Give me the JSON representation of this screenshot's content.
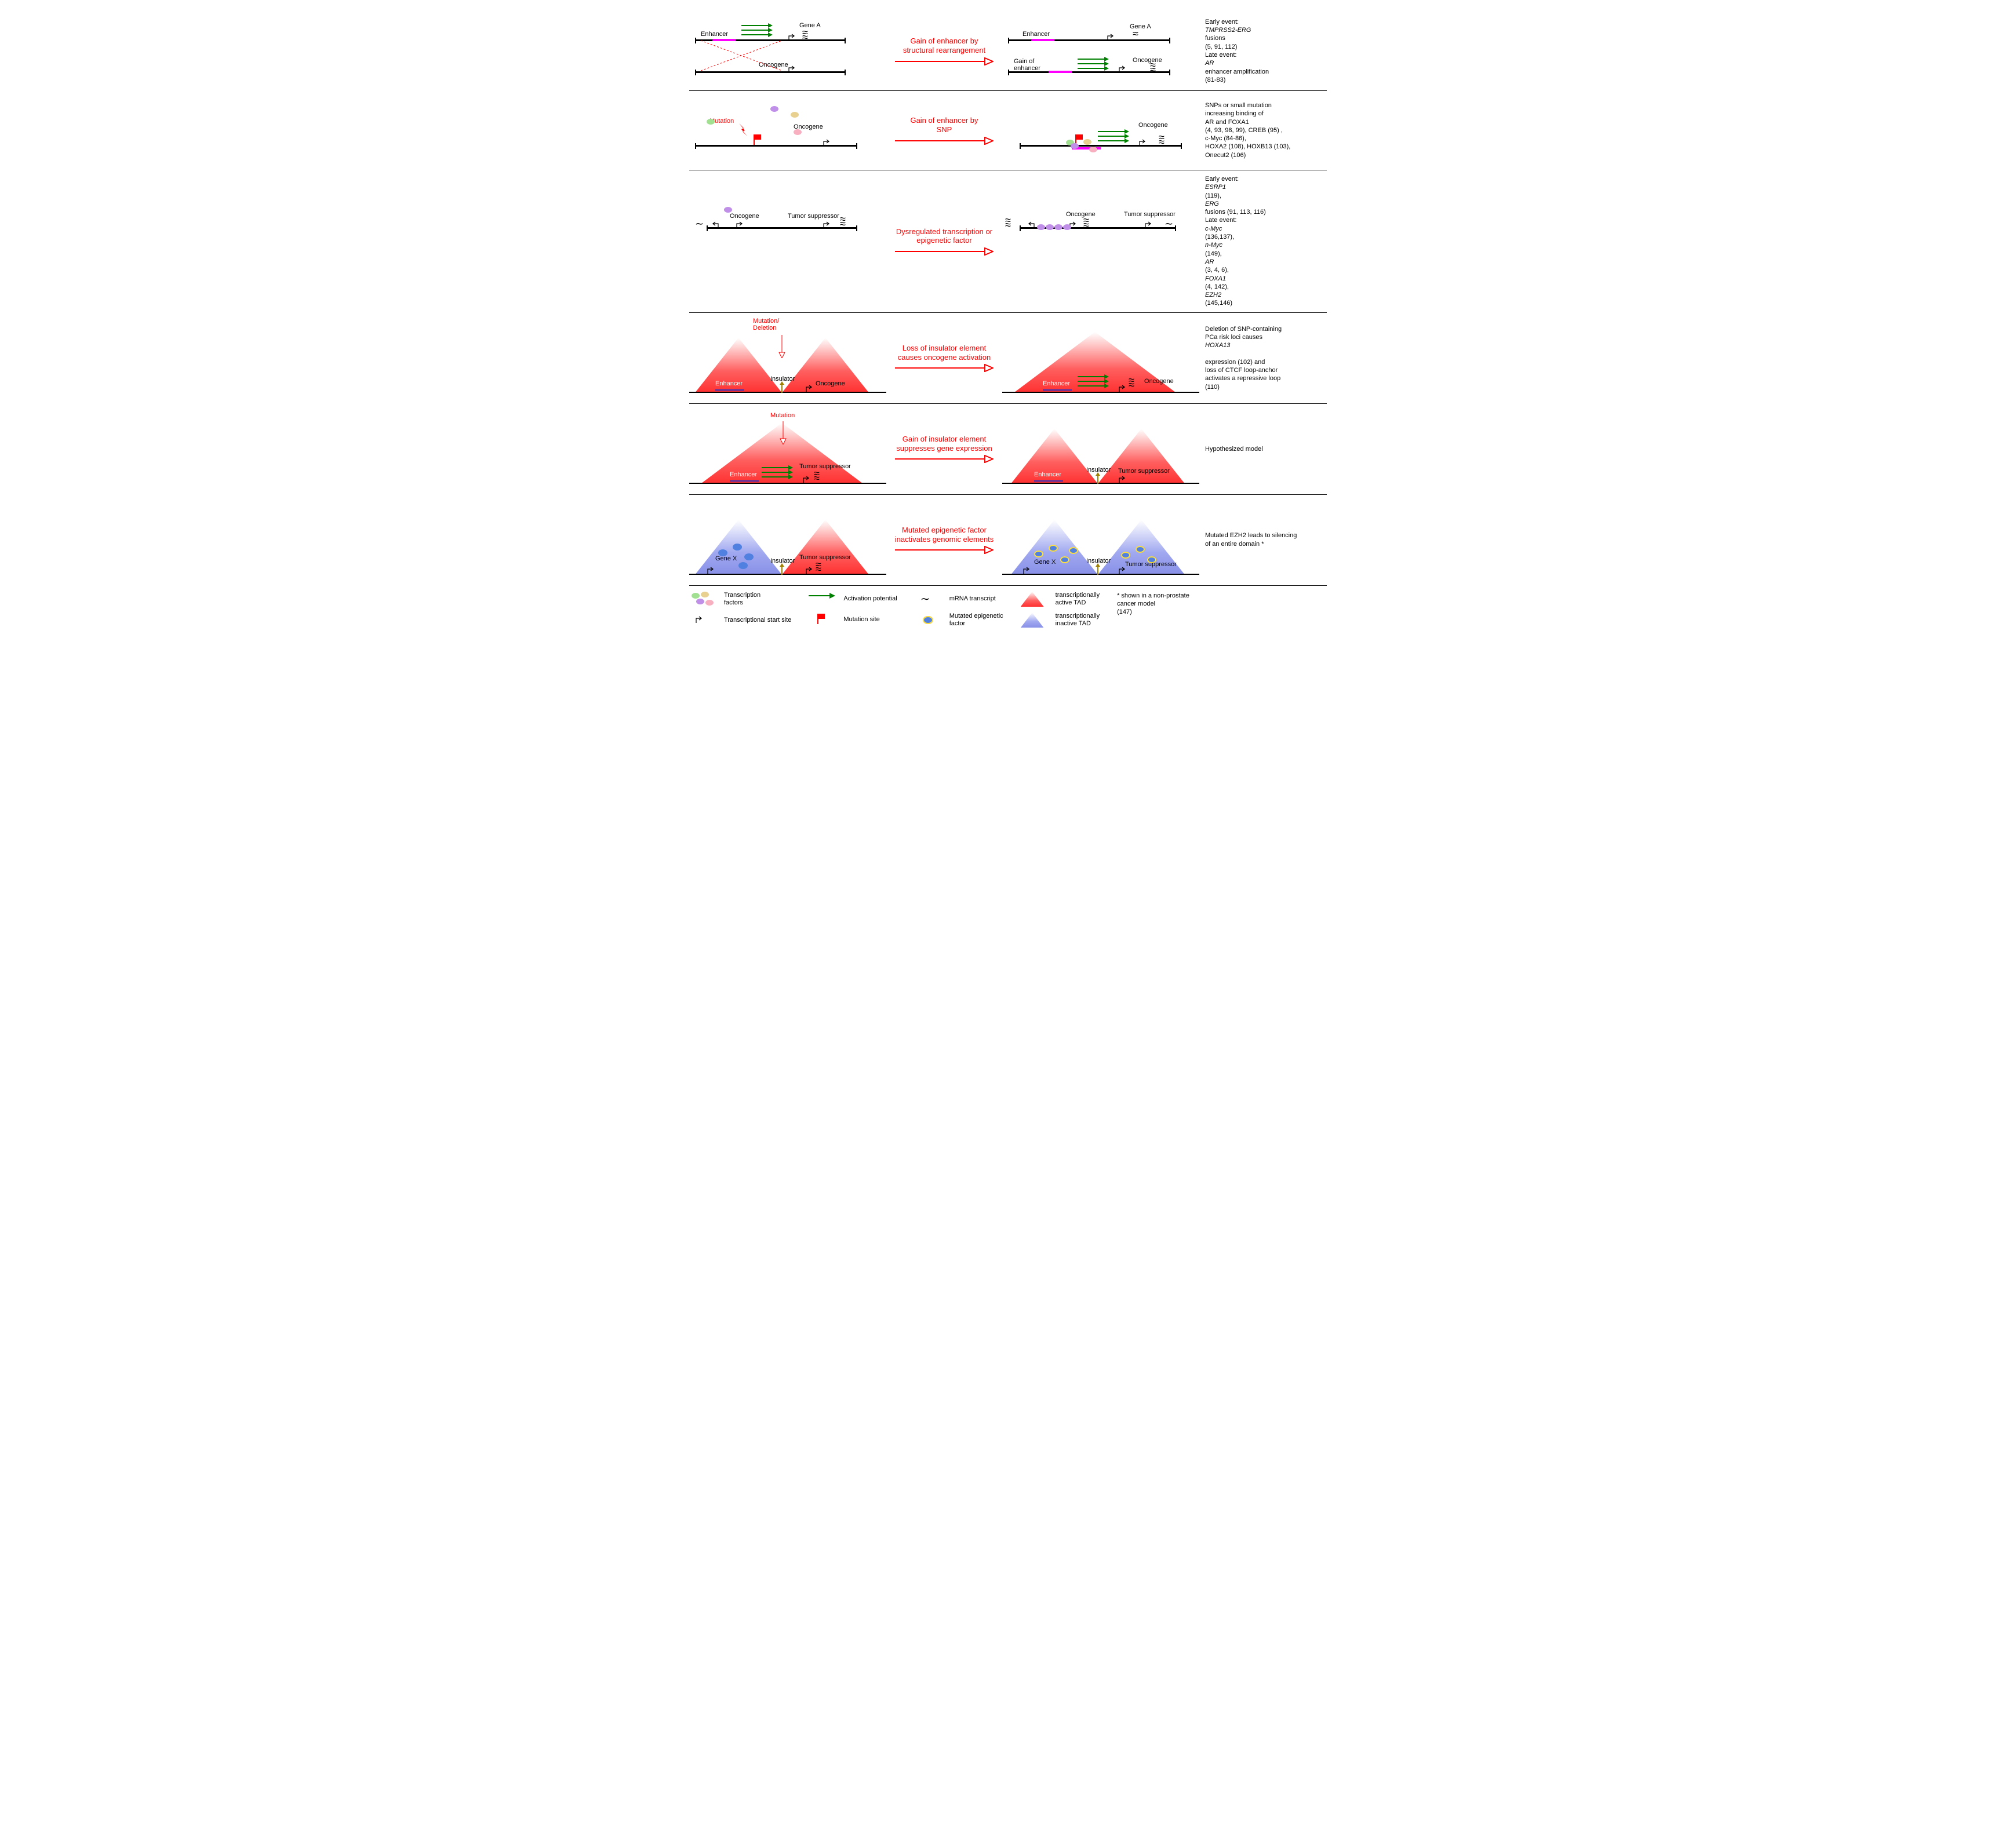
{
  "colors": {
    "red": "#ff0000",
    "green": "#008000",
    "magenta": "#ff00ff",
    "blue": "#3030c0",
    "tadRedTop": "#ffffff",
    "tadRedBot": "#ff3030",
    "tadBlueTop": "#ffffff",
    "tadBlueBot": "#8890e8",
    "olive": "#a08000",
    "blobGreen": "#a0e090",
    "blobPurple": "#c090e8",
    "blobTan": "#e8d090",
    "blobPink": "#f8b0c0",
    "blobBlue": "#5080e0",
    "mutGlow": "#ffe040"
  },
  "rows": [
    {
      "title": "Gain of enhancer by\nstructural rearrangement",
      "left": {
        "labels": {
          "enhancer": "Enhancer",
          "geneA": "Gene A",
          "oncogene": "Oncogene"
        }
      },
      "right": {
        "labels": {
          "enhancer": "Enhancer",
          "geneA": "Gene A",
          "gainEnh": "Gain of\nenhancer",
          "oncogene": "Oncogene"
        }
      },
      "desc": "Early event:\n<i>TMPRSS2-ERG</i> fusions\n(5, 91, 112)\nLate event:\n<i>AR</i> enhancer amplification\n(81-83)"
    },
    {
      "title": "Gain of enhancer by\nSNP",
      "left": {
        "labels": {
          "mutation": "Mutation",
          "oncogene": "Oncogene"
        }
      },
      "right": {
        "labels": {
          "oncogene": "Oncogene"
        }
      },
      "desc": "SNPs or small mutation\nincreasing binding of\nAR and FOXA1\n(4, 93, 98, 99),  CREB (95) ,\nc-Myc (84-86),\nHOXA2 (108), HOXB13 (103),\nOnecut2 (106)"
    },
    {
      "title": "Dysregulated transcription or\nepigenetic factor",
      "left": {
        "labels": {
          "oncogene": "Oncogene",
          "ts": "Tumor suppressor"
        }
      },
      "right": {
        "labels": {
          "oncogene": "Oncogene",
          "ts": "Tumor suppressor"
        }
      },
      "desc": "Early event:\n<i>ESRP1</i> (119),\n<i>ERG</i> fusions (91, 113, 116)\nLate event:\n<i>c-Myc</i> (136,137), <i>n-Myc</i> (149),\n<i>AR</i> (3, 4, 6), <i>FOXA1</i> (4, 142),\n<i>EZH2</i> (145,146)"
    },
    {
      "title": "Loss of insulator element\ncauses oncogene activation",
      "left": {
        "labels": {
          "mutdel": "Mutation/\nDeletion",
          "insulator": "Insulator",
          "enhancer": "Enhancer",
          "oncogene": "Oncogene"
        }
      },
      "right": {
        "labels": {
          "enhancer": "Enhancer",
          "oncogene": "Oncogene"
        }
      },
      "desc": "Deletion of SNP-containing\nPCa risk loci causes <i>HOXA13</i>\nexpression (102) and\nloss of CTCF loop-anchor\nactivates a repressive loop\n(110)"
    },
    {
      "title": "Gain of insulator element\nsuppresses gene expression",
      "left": {
        "labels": {
          "mutation": "Mutation",
          "enhancer": "Enhancer",
          "ts": "Tumor suppressor"
        }
      },
      "right": {
        "labels": {
          "enhancer": "Enhancer",
          "insulator": "Insulator",
          "ts": "Tumor suppressor"
        }
      },
      "desc": "Hypothesized model"
    },
    {
      "title": "Mutated  epigenetic factor\ninactivates genomic elements",
      "left": {
        "labels": {
          "geneX": "Gene X",
          "insulator": "Insulator",
          "ts": "Tumor suppressor"
        }
      },
      "right": {
        "labels": {
          "geneX": "Gene X",
          "insulator": "Insulator",
          "ts": "Tumor suppressor"
        }
      },
      "desc": "Mutated EZH2 leads to silencing\nof an entire domain *"
    }
  ],
  "legend": {
    "items": [
      {
        "key": "tf",
        "label": "Transcription\nfactors"
      },
      {
        "key": "tss",
        "label": "Transcriptional start site"
      },
      {
        "key": "act",
        "label": "Activation potential"
      },
      {
        "key": "mut",
        "label": "Mutation site"
      },
      {
        "key": "mrna",
        "label": "mRNA transcript"
      },
      {
        "key": "mef",
        "label": "Mutated epigenetic\nfactor"
      },
      {
        "key": "tadR",
        "label": "transcriptionally\nactive TAD"
      },
      {
        "key": "tadB",
        "label": "transcriptionally\ninactive TAD"
      }
    ],
    "footnote": "* shown in a non-prostate\ncancer model\n(147)"
  }
}
